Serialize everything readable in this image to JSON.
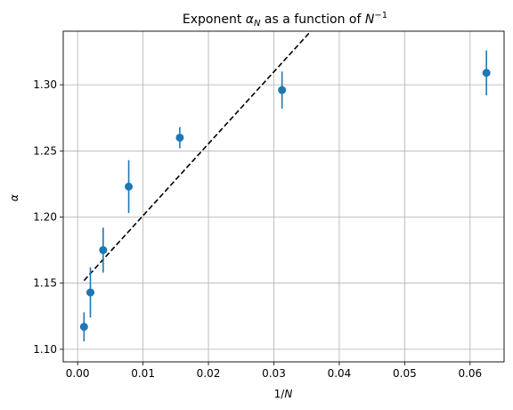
{
  "chart_data": {
    "type": "scatter",
    "title_parts": {
      "pre": "Exponent ",
      "sym": "α",
      "sub": "N",
      "mid": " as a function of ",
      "base": "N",
      "sup": "−1"
    },
    "xlabel_parts": {
      "pre": "1/",
      "sym": "N"
    },
    "ylabel": "α",
    "xlim": [
      -0.0022,
      0.0652
    ],
    "ylim": [
      1.0905,
      1.3405
    ],
    "xticks": [
      0.0,
      0.01,
      0.02,
      0.03,
      0.04,
      0.05,
      0.06
    ],
    "xtick_labels": [
      "0.00",
      "0.01",
      "0.02",
      "0.03",
      "0.04",
      "0.05",
      "0.06"
    ],
    "yticks": [
      1.1,
      1.15,
      1.2,
      1.25,
      1.3
    ],
    "ytick_labels": [
      "1.10",
      "1.15",
      "1.20",
      "1.25",
      "1.30"
    ],
    "grid": true,
    "series": [
      {
        "style": "errorbar",
        "color": "#1f77b4",
        "points": [
          {
            "x": 0.000977,
            "y": 1.117,
            "yerr": 0.011
          },
          {
            "x": 0.001953,
            "y": 1.143,
            "yerr": 0.019
          },
          {
            "x": 0.003906,
            "y": 1.175,
            "yerr": 0.017
          },
          {
            "x": 0.007813,
            "y": 1.223,
            "yerr": 0.02
          },
          {
            "x": 0.015625,
            "y": 1.26,
            "yerr": 0.008
          },
          {
            "x": 0.03125,
            "y": 1.296,
            "yerr": 0.014
          },
          {
            "x": 0.0625,
            "y": 1.309,
            "yerr": 0.017
          }
        ]
      },
      {
        "style": "dashed-line",
        "color": "#000000",
        "x": [
          0.000977,
          0.03565
        ],
        "y": [
          1.152,
          1.3405
        ]
      }
    ]
  }
}
